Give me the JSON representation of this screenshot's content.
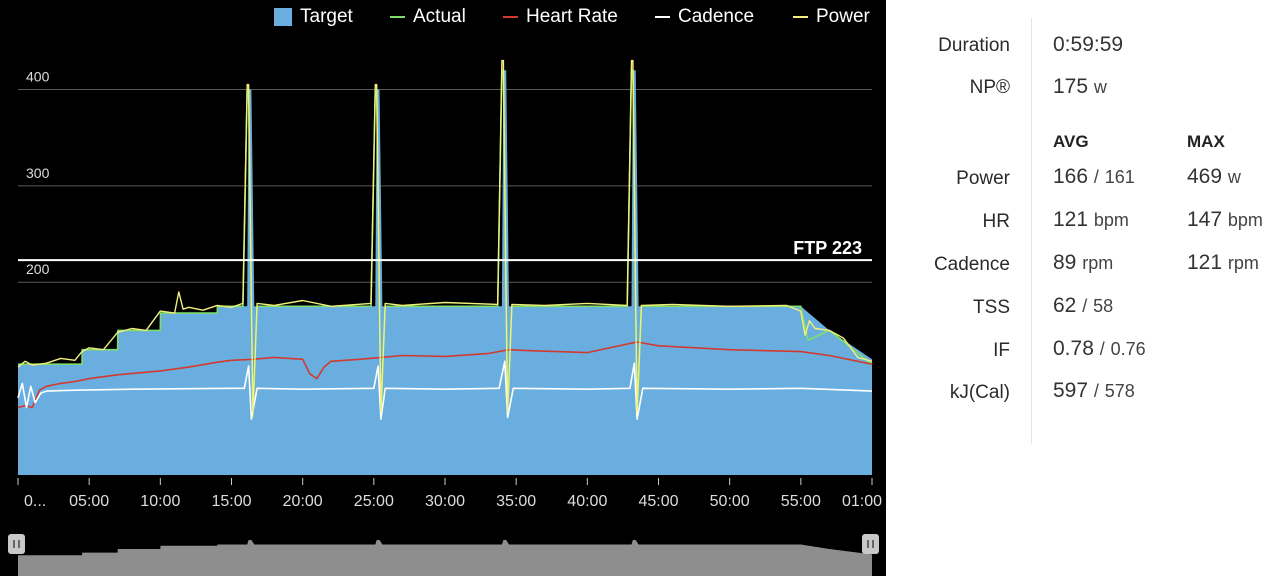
{
  "legend": {
    "target": {
      "label": "Target",
      "color": "#6aaee0"
    },
    "actual": {
      "label": "Actual",
      "color": "#7dde6a"
    },
    "heart_rate": {
      "label": "Heart Rate",
      "color": "#d23a2e"
    },
    "cadence": {
      "label": "Cadence",
      "color": "#ffffff"
    },
    "power": {
      "label": "Power",
      "color": "#f2f07a"
    }
  },
  "ftp_label": "FTP 223",
  "chart_data": {
    "type": "area",
    "x_unit": "minutes",
    "xlim": [
      0,
      60
    ],
    "ylim": [
      0,
      470
    ],
    "y_ticks": [
      {
        "value": 200,
        "label": "200"
      },
      {
        "value": 300,
        "label": "300"
      },
      {
        "value": 400,
        "label": "400"
      }
    ],
    "x_ticks": [
      {
        "value": 0,
        "label": "0..."
      },
      {
        "value": 5,
        "label": "05:00"
      },
      {
        "value": 10,
        "label": "10:00"
      },
      {
        "value": 15,
        "label": "15:00"
      },
      {
        "value": 20,
        "label": "20:00"
      },
      {
        "value": 25,
        "label": "25:00"
      },
      {
        "value": 30,
        "label": "30:00"
      },
      {
        "value": 35,
        "label": "35:00"
      },
      {
        "value": 40,
        "label": "40:00"
      },
      {
        "value": 45,
        "label": "45:00"
      },
      {
        "value": 50,
        "label": "50:00"
      },
      {
        "value": 55,
        "label": "55:00"
      },
      {
        "value": 60,
        "label": "01:00"
      }
    ],
    "ftp": 223,
    "grid": true,
    "legend_position": "top",
    "series": [
      {
        "name": "Target",
        "x": [
          0,
          0.01,
          4.5,
          4.51,
          7,
          7.01,
          10,
          10.01,
          14,
          14.01,
          16.1,
          16.2,
          16.4,
          16.6,
          25.1,
          25.2,
          25.4,
          25.6,
          34,
          34.1,
          34.3,
          34.5,
          43.1,
          43.2,
          43.4,
          43.6,
          55,
          57,
          60
        ],
        "y": [
          115,
          115,
          115,
          130,
          130,
          150,
          150,
          168,
          168,
          175,
          175,
          400,
          400,
          175,
          175,
          400,
          400,
          175,
          175,
          420,
          420,
          175,
          175,
          420,
          420,
          175,
          175,
          150,
          120
        ]
      },
      {
        "name": "Actual",
        "x": [
          0,
          0.01,
          4.5,
          4.51,
          7,
          7.01,
          10,
          10.01,
          14,
          14.01,
          15.8,
          16.1,
          16.2,
          16.4,
          16.5,
          16.8,
          24.8,
          25.1,
          25.2,
          25.4,
          25.5,
          25.8,
          33.7,
          34,
          34.1,
          34.3,
          34.4,
          34.7,
          42.8,
          43.1,
          43.2,
          43.4,
          43.5,
          43.8,
          55,
          55.5,
          57,
          60
        ],
        "y": [
          115,
          115,
          115,
          130,
          130,
          150,
          150,
          168,
          168,
          175,
          175,
          400,
          400,
          175,
          60,
          175,
          175,
          400,
          400,
          175,
          60,
          175,
          175,
          420,
          420,
          175,
          60,
          175,
          175,
          420,
          420,
          175,
          60,
          175,
          175,
          140,
          150,
          115
        ]
      },
      {
        "name": "Heart Rate",
        "x": [
          0,
          0.5,
          1,
          1.5,
          2,
          3,
          4,
          5,
          7,
          10,
          12,
          14,
          15,
          16.5,
          18,
          20,
          20.5,
          21,
          21.5,
          22,
          24,
          25.5,
          27,
          30,
          33,
          34.5,
          36,
          40,
          43.5,
          45,
          50,
          55,
          57,
          60
        ],
        "y": [
          70,
          72,
          70,
          88,
          92,
          95,
          97,
          100,
          104,
          108,
          112,
          117,
          119,
          120,
          122,
          120,
          105,
          100,
          112,
          118,
          120,
          122,
          124,
          123,
          126,
          130,
          129,
          127,
          138,
          134,
          130,
          128,
          124,
          115
        ]
      },
      {
        "name": "Cadence",
        "x": [
          0,
          0.3,
          0.6,
          0.9,
          1.2,
          1.6,
          2,
          4,
          8,
          15,
          15.9,
          16.2,
          16.4,
          16.8,
          20,
          25,
          25.3,
          25.5,
          25.8,
          30,
          33.8,
          34.2,
          34.4,
          34.8,
          40,
          43,
          43.3,
          43.5,
          43.9,
          50,
          55,
          60
        ],
        "y": [
          80,
          95,
          70,
          92,
          75,
          85,
          87,
          88,
          89,
          90,
          90,
          113,
          58,
          90,
          89,
          90,
          113,
          58,
          90,
          89,
          90,
          118,
          60,
          90,
          89,
          90,
          116,
          58,
          90,
          89,
          90,
          87
        ]
      },
      {
        "name": "Power",
        "x": [
          0,
          0.5,
          1,
          2,
          3,
          4,
          4.5,
          5,
          6,
          7,
          8,
          9,
          10,
          11,
          11.3,
          11.6,
          12,
          13,
          14,
          15,
          15.8,
          16.1,
          16.2,
          16.4,
          16.5,
          16.8,
          18,
          20,
          22,
          24.8,
          25.1,
          25.2,
          25.4,
          25.5,
          25.8,
          27,
          30,
          33.7,
          34,
          34.1,
          34.3,
          34.4,
          34.7,
          37,
          40,
          42.8,
          43.1,
          43.2,
          43.4,
          43.5,
          43.8,
          46,
          50,
          54,
          55,
          55.3,
          55.6,
          56,
          57,
          58,
          59,
          60
        ],
        "y": [
          112,
          118,
          114,
          116,
          121,
          119,
          128,
          132,
          130,
          148,
          152,
          150,
          170,
          168,
          190,
          172,
          174,
          171,
          176,
          174,
          178,
          405,
          405,
          178,
          65,
          178,
          176,
          181,
          175,
          178,
          405,
          405,
          178,
          65,
          178,
          176,
          179,
          177,
          430,
          430,
          177,
          65,
          177,
          176,
          178,
          176,
          430,
          430,
          176,
          65,
          176,
          177,
          175,
          176,
          170,
          145,
          160,
          152,
          150,
          142,
          122,
          118
        ]
      }
    ]
  },
  "stats": {
    "duration": {
      "label": "Duration",
      "value": "0:59:59"
    },
    "np": {
      "label": "NP®",
      "value": "175",
      "unit": "w"
    },
    "headers": {
      "avg": "AVG",
      "max": "MAX"
    },
    "power": {
      "label": "Power",
      "avg": "166",
      "avg2": "161",
      "max": "469",
      "unit": "w"
    },
    "hr": {
      "label": "HR",
      "avg": "121",
      "avg_unit": "bpm",
      "max": "147",
      "max_unit": "bpm"
    },
    "cadence": {
      "label": "Cadence",
      "avg": "89",
      "avg_unit": "rpm",
      "max": "121",
      "max_unit": "rpm"
    },
    "tss": {
      "label": "TSS",
      "value": "62",
      "value2": "58"
    },
    "if": {
      "label": "IF",
      "value": "0.78",
      "value2": "0.76"
    },
    "kj": {
      "label": "kJ(Cal)",
      "value": "597",
      "value2": "578"
    }
  },
  "slash": "/"
}
